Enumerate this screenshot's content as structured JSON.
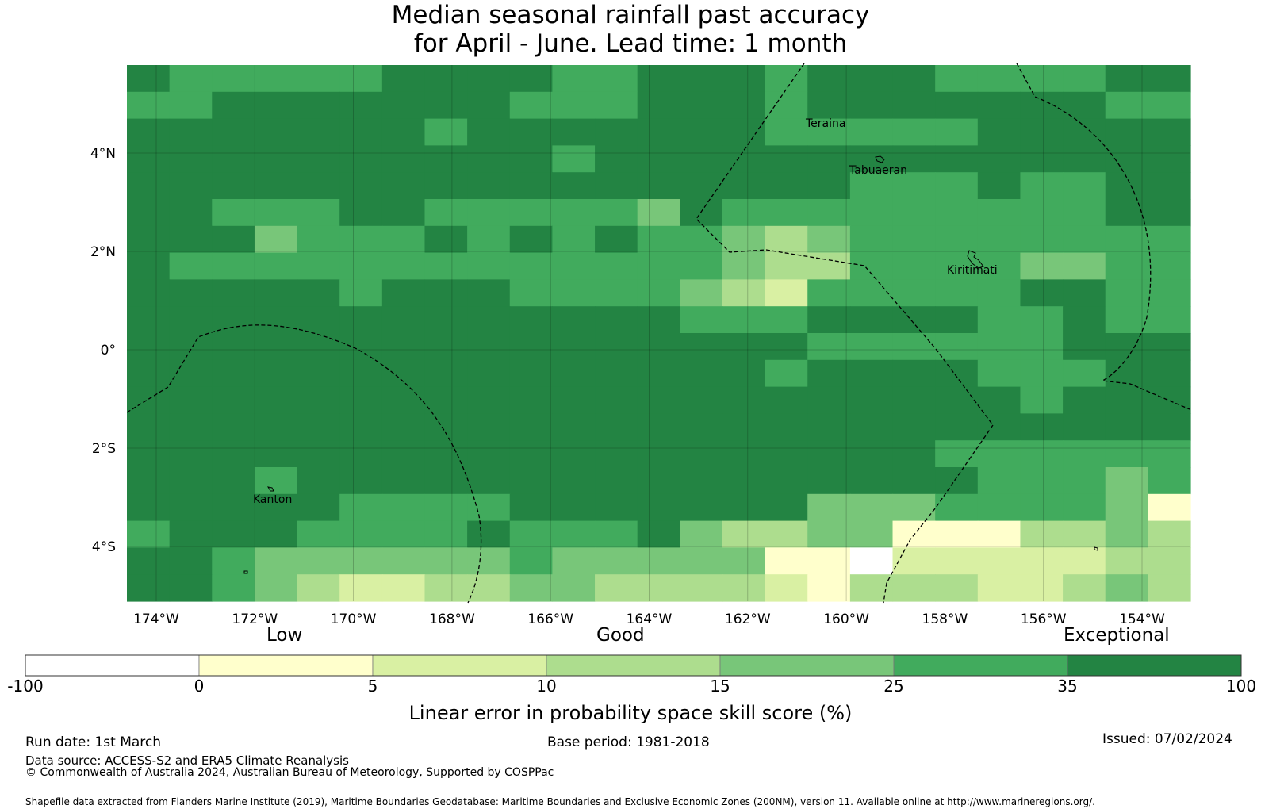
{
  "title": {
    "line1": "Median seasonal rainfall past accuracy",
    "line2": "for April - June. Lead time: 1 month"
  },
  "map": {
    "lon_ticks": [
      "174°W",
      "172°W",
      "170°W",
      "168°W",
      "166°W",
      "164°W",
      "162°W",
      "160°W",
      "158°W",
      "156°W",
      "154°W"
    ],
    "lat_ticks": [
      "4°N",
      "2°N",
      "0°",
      "2°S",
      "4°S"
    ],
    "places": [
      "Teraina",
      "Tabuaeran",
      "Kiritimati",
      "Kanton"
    ]
  },
  "colorbar": {
    "categories": [
      "Low",
      "Good",
      "Exceptional"
    ],
    "ticks": [
      "-100",
      "0",
      "5",
      "10",
      "15",
      "25",
      "35",
      "100"
    ],
    "colors": [
      "#ffffff",
      "#ffffcc",
      "#d9f0a3",
      "#addd8e",
      "#78c679",
      "#41ab5d",
      "#238443"
    ],
    "label": "Linear error in probability space skill score (%)"
  },
  "footer": {
    "run_date": "Run date: 1st March",
    "base_period": "Base period: 1981-2018",
    "issued": "Issued: 07/02/2024",
    "data_source": "Data source: ACCESS-S2 and ERA5 Climate Reanalysis",
    "copyright": "© Commonwealth of Australia 2024, Australian Bureau of Meteorology, Supported by COSPPac",
    "shapefile": "Shapefile data extracted from Flanders Marine Institute (2019), Maritime Boundaries Geodatabase: Maritime Boundaries and Exclusive Economic Zones (200NM), version 11. Available online at http://www.marineregions.org/."
  }
}
